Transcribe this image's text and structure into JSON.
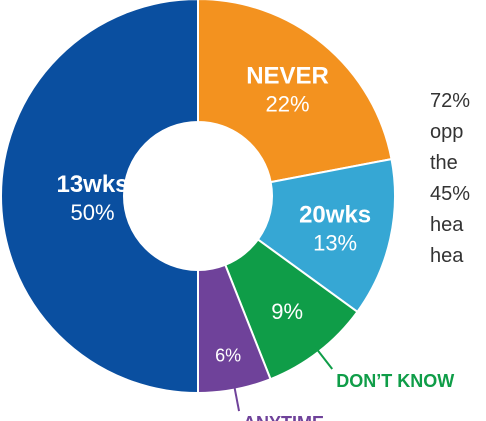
{
  "chart_data": {
    "type": "pie",
    "variant": "donut",
    "start_angle_deg": 0,
    "direction": "clockwise",
    "slices": [
      {
        "label": "NEVER",
        "value": 22,
        "value_text": "22%",
        "color": "#f3921f",
        "label_color": "#ffffff"
      },
      {
        "label": "20wks",
        "value": 13,
        "value_text": "13%",
        "color": "#36a7d4",
        "label_color": "#ffffff"
      },
      {
        "label": "",
        "value": 9,
        "value_text": "9%",
        "color": "#0f9d48",
        "label_color": "#ffffff"
      },
      {
        "label": "",
        "value": 6,
        "value_text": "6%",
        "color": "#6f429a",
        "label_color": "#ffffff"
      },
      {
        "label": "13wks",
        "value": 50,
        "value_text": "50%",
        "color": "#0a4fa0",
        "label_color": "#ffffff"
      }
    ],
    "callouts": [
      {
        "text": "DON’T KNOW",
        "slice_index": 2,
        "color": "#0f9d48"
      },
      {
        "text": "ANYTIME",
        "slice_index": 3,
        "color": "#6f429a"
      }
    ]
  },
  "side_text": {
    "lines": [
      "72%",
      "opp",
      "the",
      "45%",
      "hea",
      "hea"
    ]
  }
}
